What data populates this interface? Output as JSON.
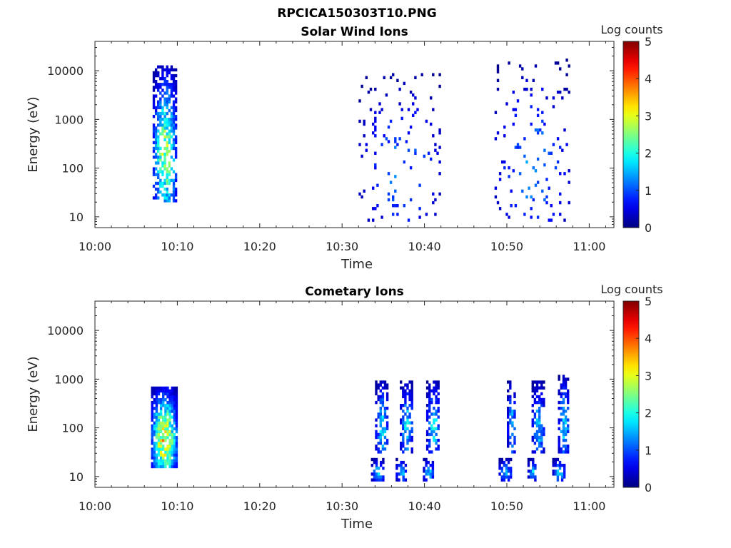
{
  "figure": {
    "title": "RPCICA150303T10.PNG"
  },
  "chart_data": [
    {
      "type": "heatmap",
      "title": "Solar Wind Ions",
      "xlabel": "Time",
      "ylabel": "Energy (eV)",
      "x_ticks": [
        "10:00",
        "10:10",
        "10:20",
        "10:30",
        "10:40",
        "10:50",
        "11:00"
      ],
      "x_range_minutes": [
        0,
        63
      ],
      "y_scale": "log",
      "y_ticks": [
        10,
        100,
        1000,
        10000
      ],
      "y_range": [
        6,
        40000
      ],
      "colorbar": {
        "label": "Log counts",
        "ticks": [
          0,
          1,
          2,
          3,
          4,
          5
        ],
        "range": [
          0,
          5
        ],
        "colormap": "jet"
      },
      "clusters": [
        {
          "t": [
            7.0,
            9.8
          ],
          "e": [
            20,
            12000
          ],
          "peak": 3.2,
          "density": 0.6
        },
        {
          "t": [
            32.0,
            42.0
          ],
          "e": [
            8,
            9000
          ],
          "peak": 1.4,
          "density": 0.06
        },
        {
          "t": [
            48.5,
            57.5
          ],
          "e": [
            8,
            16000
          ],
          "peak": 1.6,
          "density": 0.06
        }
      ]
    },
    {
      "type": "heatmap",
      "title": "Cometary Ions",
      "xlabel": "Time",
      "ylabel": "Energy (eV)",
      "x_ticks": [
        "10:00",
        "10:10",
        "10:20",
        "10:30",
        "10:40",
        "10:50",
        "11:00"
      ],
      "x_range_minutes": [
        0,
        63
      ],
      "y_scale": "log",
      "y_ticks": [
        10,
        100,
        1000,
        10000
      ],
      "y_range": [
        6,
        40000
      ],
      "colorbar": {
        "label": "Log counts",
        "ticks": [
          0,
          1,
          2,
          3,
          4,
          5
        ],
        "range": [
          0,
          5
        ],
        "colormap": "jet"
      },
      "clusters": [
        {
          "t": [
            6.8,
            9.8
          ],
          "e": [
            15,
            700
          ],
          "peak": 4.0,
          "density": 0.85
        },
        {
          "t": [
            34.0,
            35.5
          ],
          "e": [
            30,
            900
          ],
          "peak": 2.2,
          "density": 0.55
        },
        {
          "t": [
            37.0,
            38.5
          ],
          "e": [
            30,
            900
          ],
          "peak": 2.2,
          "density": 0.55
        },
        {
          "t": [
            40.2,
            41.8
          ],
          "e": [
            30,
            900
          ],
          "peak": 2.2,
          "density": 0.55
        },
        {
          "t": [
            50.0,
            51.0
          ],
          "e": [
            30,
            900
          ],
          "peak": 2.0,
          "density": 0.5
        },
        {
          "t": [
            53.0,
            54.5
          ],
          "e": [
            30,
            900
          ],
          "peak": 2.0,
          "density": 0.5
        },
        {
          "t": [
            56.2,
            57.5
          ],
          "e": [
            30,
            1200
          ],
          "peak": 2.2,
          "density": 0.55
        },
        {
          "t": [
            33.5,
            35.0
          ],
          "e": [
            8,
            22
          ],
          "peak": 2.0,
          "density": 0.6
        },
        {
          "t": [
            36.5,
            37.8
          ],
          "e": [
            8,
            22
          ],
          "peak": 2.0,
          "density": 0.6
        },
        {
          "t": [
            39.8,
            41.0
          ],
          "e": [
            8,
            22
          ],
          "peak": 2.0,
          "density": 0.6
        },
        {
          "t": [
            49.0,
            50.5
          ],
          "e": [
            8,
            22
          ],
          "peak": 2.0,
          "density": 0.6
        },
        {
          "t": [
            52.5,
            53.5
          ],
          "e": [
            8,
            22
          ],
          "peak": 2.0,
          "density": 0.6
        },
        {
          "t": [
            55.5,
            57.0
          ],
          "e": [
            8,
            22
          ],
          "peak": 2.0,
          "density": 0.6
        }
      ]
    }
  ]
}
